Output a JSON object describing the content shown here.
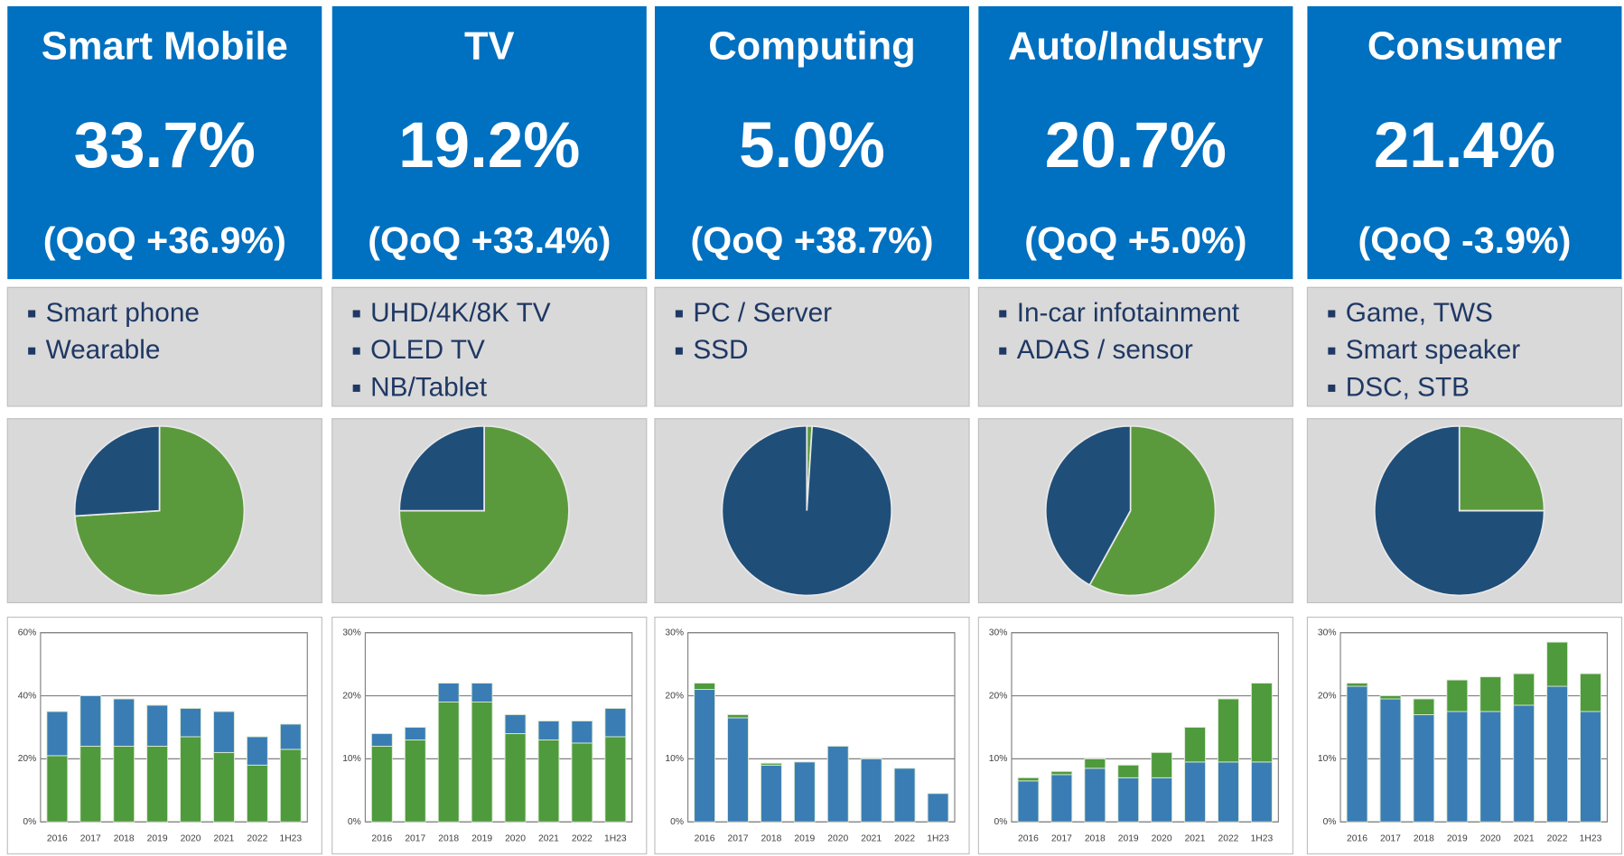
{
  "panels": [
    {
      "title": "Smart Mobile",
      "share": "33.7%",
      "qoq": "(QoQ +36.9%)",
      "bullets": [
        "Smart phone",
        "Wearable"
      ]
    },
    {
      "title": "TV",
      "share": "19.2%",
      "qoq": "(QoQ +33.4%)",
      "bullets": [
        "UHD/4K/8K TV",
        "OLED TV",
        "NB/Tablet"
      ]
    },
    {
      "title": "Computing",
      "share": "5.0%",
      "qoq": "(QoQ +38.7%)",
      "bullets": [
        "PC / Server",
        "SSD"
      ]
    },
    {
      "title": "Auto/Industry",
      "share": "20.7%",
      "qoq": "(QoQ +5.0%)",
      "bullets": [
        "In-car infotainment",
        "ADAS / sensor"
      ]
    },
    {
      "title": "Consumer",
      "share": "21.4%",
      "qoq": "(QoQ -3.9%)",
      "bullets": [
        "Game, TWS",
        "Smart speaker",
        "DSC, STB"
      ]
    }
  ],
  "chart_data": [
    {
      "type": "pie",
      "values": [
        74,
        26
      ],
      "colors": [
        "#5b9a3c",
        "#1f4e79"
      ]
    },
    {
      "type": "pie",
      "values": [
        75,
        25
      ],
      "colors": [
        "#5b9a3c",
        "#1f4e79"
      ]
    },
    {
      "type": "pie",
      "values": [
        1,
        99
      ],
      "colors": [
        "#5b9a3c",
        "#1f4e79"
      ]
    },
    {
      "type": "pie",
      "values": [
        58,
        42
      ],
      "colors": [
        "#5b9a3c",
        "#1f4e79"
      ]
    },
    {
      "type": "pie",
      "values": [
        25,
        75
      ],
      "colors": [
        "#5b9a3c",
        "#1f4e79"
      ]
    },
    {
      "type": "bar",
      "categories": [
        "2016",
        "2017",
        "2018",
        "2019",
        "2020",
        "2021",
        "2022",
        "1H23"
      ],
      "series": [
        {
          "color": "#4e9a3c",
          "values": [
            21,
            24,
            24,
            24,
            27,
            22,
            18,
            23
          ]
        },
        {
          "color": "#3a7db5",
          "values": [
            14,
            16,
            15,
            13,
            9,
            13,
            9,
            8
          ]
        }
      ],
      "ylim": [
        0,
        60
      ],
      "yticks": [
        {
          "value": 0,
          "label": "0%"
        },
        {
          "value": 20,
          "label": "20%"
        },
        {
          "value": 40,
          "label": "40%"
        },
        {
          "value": 60,
          "label": "60%"
        }
      ],
      "grid": true
    },
    {
      "type": "bar",
      "categories": [
        "2016",
        "2017",
        "2018",
        "2019",
        "2020",
        "2021",
        "2022",
        "1H23"
      ],
      "series": [
        {
          "color": "#4e9a3c",
          "values": [
            12,
            13,
            19,
            19,
            14,
            13,
            12.5,
            13.5
          ]
        },
        {
          "color": "#3a7db5",
          "values": [
            2,
            2,
            3,
            3,
            3,
            3,
            3.5,
            4.5
          ]
        }
      ],
      "ylim": [
        0,
        30
      ],
      "yticks": [
        {
          "value": 0,
          "label": "0%"
        },
        {
          "value": 10,
          "label": "10%"
        },
        {
          "value": 20,
          "label": "20%"
        },
        {
          "value": 30,
          "label": "30%"
        }
      ],
      "grid": true
    },
    {
      "type": "bar",
      "categories": [
        "2016",
        "2017",
        "2018",
        "2019",
        "2020",
        "2021",
        "2022",
        "1H23"
      ],
      "series": [
        {
          "color": "#3a7db5",
          "values": [
            21,
            16.5,
            9,
            9.5,
            12,
            10,
            8.5,
            4.5
          ]
        },
        {
          "color": "#4e9a3c",
          "values": [
            1,
            0.5,
            0.3,
            0,
            0,
            0,
            0,
            0
          ]
        }
      ],
      "ylim": [
        0,
        30
      ],
      "yticks": [
        {
          "value": 0,
          "label": "0%"
        },
        {
          "value": 10,
          "label": "10%"
        },
        {
          "value": 20,
          "label": "20%"
        },
        {
          "value": 30,
          "label": "30%"
        }
      ],
      "grid": true
    },
    {
      "type": "bar",
      "categories": [
        "2016",
        "2017",
        "2018",
        "2019",
        "2020",
        "2021",
        "2022",
        "1H23"
      ],
      "series": [
        {
          "color": "#3a7db5",
          "values": [
            6.5,
            7.5,
            8.5,
            7,
            7,
            9.5,
            9.5,
            9.5
          ]
        },
        {
          "color": "#4e9a3c",
          "values": [
            0.5,
            0.5,
            1.5,
            2,
            4,
            5.5,
            10,
            12.5
          ]
        }
      ],
      "ylim": [
        0,
        30
      ],
      "yticks": [
        {
          "value": 0,
          "label": "0%"
        },
        {
          "value": 10,
          "label": "10%"
        },
        {
          "value": 20,
          "label": "20%"
        },
        {
          "value": 30,
          "label": "30%"
        }
      ],
      "grid": true
    },
    {
      "type": "bar",
      "categories": [
        "2016",
        "2017",
        "2018",
        "2019",
        "2020",
        "2021",
        "2022",
        "1H23"
      ],
      "series": [
        {
          "color": "#3a7db5",
          "values": [
            21.5,
            19.5,
            17,
            17.5,
            17.5,
            18.5,
            21.5,
            17.5
          ]
        },
        {
          "color": "#4e9a3c",
          "values": [
            0.5,
            0.5,
            2.5,
            5,
            5.5,
            5,
            7,
            6
          ]
        }
      ],
      "ylim": [
        0,
        30
      ],
      "yticks": [
        {
          "value": 0,
          "label": "0%"
        },
        {
          "value": 10,
          "label": "10%"
        },
        {
          "value": 20,
          "label": "20%"
        },
        {
          "value": 30,
          "label": "30%"
        }
      ],
      "grid": true
    }
  ]
}
